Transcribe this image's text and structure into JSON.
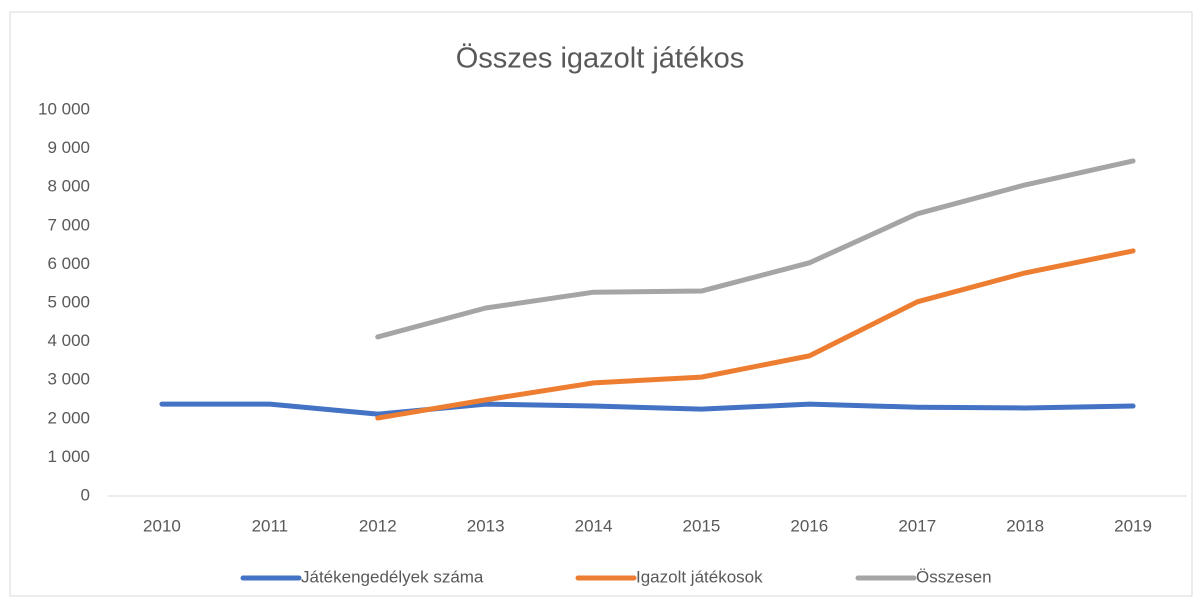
{
  "chart_data": {
    "type": "line",
    "title": "Összes igazolt játékos",
    "categories": [
      "2010",
      "2011",
      "2012",
      "2013",
      "2014",
      "2015",
      "2016",
      "2017",
      "2018",
      "2019"
    ],
    "series": [
      {
        "name": "Játékengedélyek száma",
        "color": "#4472c4",
        "values": [
          2380,
          2380,
          2120,
          2380,
          2330,
          2250,
          2380,
          2300,
          2280,
          2330
        ]
      },
      {
        "name": "Igazolt játékosok",
        "color": "#ed7d31",
        "values": [
          null,
          null,
          2020,
          2490,
          2930,
          3080,
          3630,
          5030,
          5780,
          6350
        ]
      },
      {
        "name": "Összesen",
        "color": "#a5a5a5",
        "values": [
          null,
          null,
          4120,
          4870,
          5280,
          5310,
          6040,
          7310,
          8060,
          8680
        ]
      }
    ],
    "ylim": [
      0,
      10000
    ],
    "yticks": [
      0,
      {
        "value": 1000,
        "label": "1 000"
      },
      {
        "value": 2000,
        "label": "2 000"
      },
      {
        "value": 3000,
        "label": "3 000"
      },
      {
        "value": 4000,
        "label": "4 000"
      },
      {
        "value": 5000,
        "label": "5 000"
      },
      {
        "value": 6000,
        "label": "6 000"
      },
      {
        "value": 7000,
        "label": "7 000"
      },
      {
        "value": 8000,
        "label": "8 000"
      },
      {
        "value": 9000,
        "label": "9 000"
      },
      {
        "value": 10000,
        "label": "10 000"
      }
    ],
    "grid": false,
    "legend": "bottom"
  }
}
